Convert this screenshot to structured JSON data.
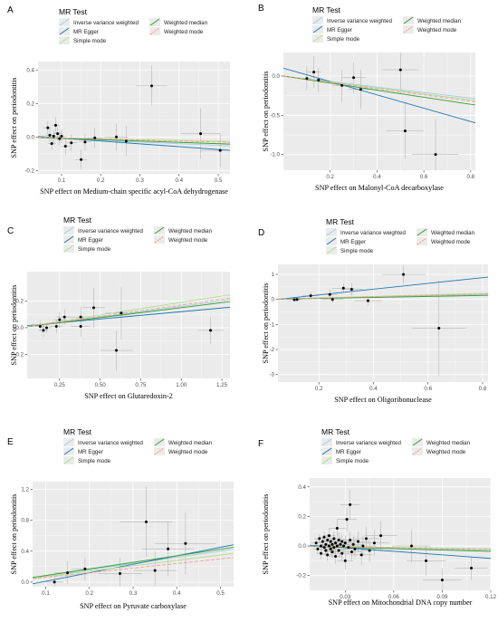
{
  "legend": {
    "title": "MR Test",
    "methods": [
      {
        "key": "ivw",
        "label": "Inverse variance weighted",
        "color": "#a6cee3",
        "dash": "none"
      },
      {
        "key": "egger",
        "label": "MR Egger",
        "color": "#1f78b4",
        "dash": "none"
      },
      {
        "key": "simple",
        "label": "Simple mode",
        "color": "#b2df8a",
        "dash": "none"
      },
      {
        "key": "median",
        "label": "Weighted median",
        "color": "#33a02c",
        "dash": "none"
      },
      {
        "key": "wmode",
        "label": "Weighted mode",
        "color": "#fb9a99",
        "dash": "4,2"
      }
    ]
  },
  "chart_data": [
    {
      "type": "scatter",
      "panel": "A",
      "xlabel": "SNP effect on Medium-chain specific acyl-CoA dehydrogenase",
      "ylabel": "SNP effect on periodontitis",
      "xlim": [
        0.04,
        0.53
      ],
      "ylim": [
        -0.22,
        0.45
      ],
      "xticks": [
        0.1,
        0.2,
        0.3,
        0.4,
        0.5
      ],
      "xtick_labels": [
        "0.1",
        "0.2",
        "0.3",
        "0.4",
        "0.5"
      ],
      "yticks": [
        -0.2,
        0.0,
        0.2,
        0.4
      ],
      "ytick_labels": [
        "-0.2",
        "0.0",
        "0.2",
        "0.4"
      ],
      "grid": true,
      "points": [
        {
          "x": 0.065,
          "y": 0.055,
          "xe": 0.01,
          "ye": 0.04
        },
        {
          "x": 0.07,
          "y": 0.01,
          "xe": 0.01,
          "ye": 0.04
        },
        {
          "x": 0.075,
          "y": -0.04,
          "xe": 0.01,
          "ye": 0.04
        },
        {
          "x": 0.08,
          "y": 0.005,
          "xe": 0.01,
          "ye": 0.04
        },
        {
          "x": 0.085,
          "y": 0.07,
          "xe": 0.01,
          "ye": 0.05
        },
        {
          "x": 0.09,
          "y": 0.02,
          "xe": 0.012,
          "ye": 0.04
        },
        {
          "x": 0.095,
          "y": -0.01,
          "xe": 0.012,
          "ye": 0.04
        },
        {
          "x": 0.1,
          "y": 0.005,
          "xe": 0.012,
          "ye": 0.04
        },
        {
          "x": 0.11,
          "y": -0.055,
          "xe": 0.012,
          "ye": 0.05
        },
        {
          "x": 0.125,
          "y": -0.035,
          "xe": 0.015,
          "ye": 0.05
        },
        {
          "x": 0.15,
          "y": -0.135,
          "xe": 0.015,
          "ye": 0.06
        },
        {
          "x": 0.16,
          "y": -0.03,
          "xe": 0.015,
          "ye": 0.05
        },
        {
          "x": 0.185,
          "y": -0.005,
          "xe": 0.02,
          "ye": 0.06
        },
        {
          "x": 0.24,
          "y": 0.0,
          "xe": 0.03,
          "ye": 0.08
        },
        {
          "x": 0.265,
          "y": -0.025,
          "xe": 0.03,
          "ye": 0.09
        },
        {
          "x": 0.33,
          "y": 0.305,
          "xe": 0.04,
          "ye": 0.12
        },
        {
          "x": 0.455,
          "y": 0.02,
          "xe": 0.05,
          "ye": 0.15
        },
        {
          "x": 0.505,
          "y": -0.08,
          "xe": 0.05,
          "ye": 0.1
        }
      ],
      "lines": [
        {
          "method": "ivw",
          "intercept": 0,
          "slope": -0.1
        },
        {
          "method": "egger",
          "intercept": 0.01,
          "slope": -0.17
        },
        {
          "method": "simple",
          "intercept": 0,
          "slope": -0.05
        },
        {
          "method": "median",
          "intercept": 0,
          "slope": -0.08
        },
        {
          "method": "wmode",
          "intercept": 0,
          "slope": -0.06
        }
      ]
    },
    {
      "type": "scatter",
      "panel": "B",
      "xlabel": "SNP effect on Malonyl-CoA decarboxylase",
      "ylabel": "SNP effect on periodontitis",
      "xlim": [
        0.0,
        0.82
      ],
      "ylim": [
        -1.2,
        0.3
      ],
      "xticks": [
        0.2,
        0.4,
        0.6,
        0.8
      ],
      "xtick_labels": [
        "0.2",
        "0.4",
        "0.6",
        "0.8"
      ],
      "yticks": [
        -1.0,
        -0.5,
        0.0
      ],
      "ytick_labels": [
        "-1.0",
        "-0.5",
        "0.0"
      ],
      "grid": true,
      "points": [
        {
          "x": 0.1,
          "y": -0.03,
          "xe": 0.02,
          "ye": 0.15
        },
        {
          "x": 0.13,
          "y": 0.05,
          "xe": 0.03,
          "ye": 0.2
        },
        {
          "x": 0.15,
          "y": -0.05,
          "xe": 0.03,
          "ye": 0.15
        },
        {
          "x": 0.25,
          "y": -0.12,
          "xe": 0.04,
          "ye": 0.2
        },
        {
          "x": 0.3,
          "y": -0.02,
          "xe": 0.05,
          "ye": 0.2
        },
        {
          "x": 0.33,
          "y": -0.17,
          "xe": 0.05,
          "ye": 0.25
        },
        {
          "x": 0.5,
          "y": 0.08,
          "xe": 0.08,
          "ye": 0.3
        },
        {
          "x": 0.52,
          "y": -0.7,
          "xe": 0.08,
          "ye": 0.35
        },
        {
          "x": 0.65,
          "y": -1.0,
          "xe": 0.1,
          "ye": 0.45
        }
      ],
      "lines": [
        {
          "method": "ivw",
          "intercept": 0,
          "slope": -0.35
        },
        {
          "method": "egger",
          "intercept": 0.1,
          "slope": -0.85
        },
        {
          "method": "simple",
          "intercept": 0,
          "slope": -0.38
        },
        {
          "method": "median",
          "intercept": 0,
          "slope": -0.45
        },
        {
          "method": "wmode",
          "intercept": 0,
          "slope": -0.4
        }
      ]
    },
    {
      "type": "scatter",
      "panel": "C",
      "xlabel": "SNP effect on Glutaredoxin-2",
      "ylabel": "SNP effect on periodontitis",
      "xlim": [
        0.05,
        1.3
      ],
      "ylim": [
        -0.38,
        0.42
      ],
      "xticks": [
        0.25,
        0.5,
        0.75,
        1.0,
        1.25
      ],
      "xtick_labels": [
        "0.25",
        "0.50",
        "0.75",
        "1.00",
        "1.25"
      ],
      "yticks": [
        -0.2,
        0.0,
        0.2
      ],
      "ytick_labels": [
        "-0.2",
        "0.0",
        "0.2"
      ],
      "grid": true,
      "points": [
        {
          "x": 0.13,
          "y": 0.01,
          "xe": 0.03,
          "ye": 0.04
        },
        {
          "x": 0.15,
          "y": -0.02,
          "xe": 0.03,
          "ye": 0.05
        },
        {
          "x": 0.17,
          "y": 0.0,
          "xe": 0.03,
          "ye": 0.04
        },
        {
          "x": 0.23,
          "y": 0.01,
          "xe": 0.04,
          "ye": 0.05
        },
        {
          "x": 0.25,
          "y": 0.06,
          "xe": 0.04,
          "ye": 0.06
        },
        {
          "x": 0.28,
          "y": 0.08,
          "xe": 0.05,
          "ye": 0.06
        },
        {
          "x": 0.38,
          "y": 0.08,
          "xe": 0.06,
          "ye": 0.08
        },
        {
          "x": 0.38,
          "y": 0.01,
          "xe": 0.06,
          "ye": 0.08
        },
        {
          "x": 0.46,
          "y": 0.15,
          "xe": 0.07,
          "ye": 0.15
        },
        {
          "x": 0.63,
          "y": 0.11,
          "xe": 0.1,
          "ye": 0.2
        },
        {
          "x": 0.6,
          "y": -0.17,
          "xe": 0.1,
          "ye": 0.15
        },
        {
          "x": 1.18,
          "y": -0.02,
          "xe": 0.08,
          "ye": 0.1
        }
      ],
      "lines": [
        {
          "method": "ivw",
          "intercept": 0,
          "slope": 0.16
        },
        {
          "method": "egger",
          "intercept": 0.01,
          "slope": 0.11
        },
        {
          "method": "simple",
          "intercept": 0,
          "slope": 0.19
        },
        {
          "method": "median",
          "intercept": 0,
          "slope": 0.15
        },
        {
          "method": "wmode",
          "intercept": 0,
          "slope": 0.17
        }
      ]
    },
    {
      "type": "scatter",
      "panel": "D",
      "xlabel": "SNP effect on Oligoribonuclease",
      "ylabel": "SNP effect on periodontitis",
      "xlim": [
        0.05,
        0.82
      ],
      "ylim": [
        -3.3,
        1.4
      ],
      "xticks": [
        0.2,
        0.4,
        0.6,
        0.8
      ],
      "xtick_labels": [
        "0.2",
        "0.4",
        "0.6",
        "0.8"
      ],
      "yticks": [
        -3,
        -2,
        -1,
        0,
        1
      ],
      "ytick_labels": [
        "-3",
        "-2",
        "-1",
        "0",
        "1"
      ],
      "grid": true,
      "points": [
        {
          "x": 0.11,
          "y": -0.01,
          "xe": 0.02,
          "ye": 0.1
        },
        {
          "x": 0.12,
          "y": 0.0,
          "xe": 0.02,
          "ye": 0.1
        },
        {
          "x": 0.17,
          "y": 0.15,
          "xe": 0.03,
          "ye": 0.15
        },
        {
          "x": 0.24,
          "y": 0.2,
          "xe": 0.03,
          "ye": 0.2
        },
        {
          "x": 0.25,
          "y": 0.0,
          "xe": 0.04,
          "ye": 0.15
        },
        {
          "x": 0.29,
          "y": 0.45,
          "xe": 0.04,
          "ye": 0.2
        },
        {
          "x": 0.32,
          "y": 0.4,
          "xe": 0.04,
          "ye": 0.25
        },
        {
          "x": 0.38,
          "y": -0.05,
          "xe": 0.05,
          "ye": 0.2
        },
        {
          "x": 0.51,
          "y": 1.0,
          "xe": 0.08,
          "ye": 0.35
        },
        {
          "x": 0.64,
          "y": -1.15,
          "xe": 0.1,
          "ye": 1.9
        }
      ],
      "lines": [
        {
          "method": "ivw",
          "intercept": 0,
          "slope": 0.25
        },
        {
          "method": "egger",
          "intercept": -0.05,
          "slope": 1.15
        },
        {
          "method": "simple",
          "intercept": 0,
          "slope": 0.3
        },
        {
          "method": "median",
          "intercept": 0,
          "slope": 0.2
        },
        {
          "method": "wmode",
          "intercept": 0,
          "slope": 0.28
        }
      ]
    },
    {
      "type": "scatter",
      "panel": "E",
      "xlabel": "SNP effect on Pyruvate carboxylase",
      "ylabel": "SNP effect on periodontitis",
      "xlim": [
        0.07,
        0.53
      ],
      "ylim": [
        -0.06,
        1.3
      ],
      "xticks": [
        0.1,
        0.2,
        0.3,
        0.4,
        0.5
      ],
      "xtick_labels": [
        "0.1",
        "0.2",
        "0.3",
        "0.4",
        "0.5"
      ],
      "yticks": [
        0.0,
        0.4,
        0.8,
        1.2
      ],
      "ytick_labels": [
        "0.0",
        "0.4",
        "0.8",
        "1.2"
      ],
      "grid": true,
      "points": [
        {
          "x": 0.12,
          "y": 0.0,
          "xe": 0.02,
          "ye": 0.1
        },
        {
          "x": 0.15,
          "y": 0.12,
          "xe": 0.03,
          "ye": 0.15
        },
        {
          "x": 0.19,
          "y": 0.17,
          "xe": 0.03,
          "ye": 0.15
        },
        {
          "x": 0.27,
          "y": 0.11,
          "xe": 0.05,
          "ye": 0.2
        },
        {
          "x": 0.33,
          "y": 0.78,
          "xe": 0.06,
          "ye": 0.45
        },
        {
          "x": 0.35,
          "y": 0.15,
          "xe": 0.05,
          "ye": 0.25
        },
        {
          "x": 0.38,
          "y": 0.43,
          "xe": 0.06,
          "ye": 0.35
        },
        {
          "x": 0.42,
          "y": 0.5,
          "xe": 0.07,
          "ye": 0.4
        }
      ],
      "lines": [
        {
          "method": "ivw",
          "intercept": 0,
          "slope": 0.8
        },
        {
          "method": "egger",
          "intercept": -0.1,
          "slope": 1.1
        },
        {
          "method": "simple",
          "intercept": 0,
          "slope": 0.7
        },
        {
          "method": "median",
          "intercept": 0,
          "slope": 0.85
        },
        {
          "method": "wmode",
          "intercept": 0,
          "slope": 0.6
        }
      ]
    },
    {
      "type": "scatter",
      "panel": "F",
      "xlabel": "SNP effect on Mitochondrial DNA copy number",
      "ylabel": "SNP effect on periodontitis",
      "xlim": [
        0.008,
        0.12
      ],
      "ylim": [
        -0.3,
        0.46
      ],
      "xticks": [
        0.03,
        0.06,
        0.09,
        0.12
      ],
      "xtick_labels": [
        "0.03",
        "0.06",
        "0.09",
        "0.12"
      ],
      "yticks": [
        -0.2,
        0.0,
        0.2,
        0.4
      ],
      "ytick_labels": [
        "-0.2",
        "0.0",
        "0.2",
        "0.4"
      ],
      "grid": true,
      "points": [
        {
          "x": 0.012,
          "y": 0.02,
          "xe": 0.003,
          "ye": 0.03
        },
        {
          "x": 0.013,
          "y": -0.02,
          "xe": 0.003,
          "ye": 0.03
        },
        {
          "x": 0.014,
          "y": 0.05,
          "xe": 0.003,
          "ye": 0.03
        },
        {
          "x": 0.015,
          "y": 0.0,
          "xe": 0.003,
          "ye": 0.03
        },
        {
          "x": 0.015,
          "y": -0.05,
          "xe": 0.003,
          "ye": 0.04
        },
        {
          "x": 0.016,
          "y": 0.03,
          "xe": 0.003,
          "ye": 0.03
        },
        {
          "x": 0.017,
          "y": -0.01,
          "xe": 0.003,
          "ye": 0.03
        },
        {
          "x": 0.017,
          "y": 0.06,
          "xe": 0.003,
          "ye": 0.04
        },
        {
          "x": 0.018,
          "y": -0.03,
          "xe": 0.003,
          "ye": 0.03
        },
        {
          "x": 0.018,
          "y": 0.01,
          "xe": 0.003,
          "ye": 0.03
        },
        {
          "x": 0.019,
          "y": 0.04,
          "xe": 0.003,
          "ye": 0.04
        },
        {
          "x": 0.019,
          "y": -0.06,
          "xe": 0.003,
          "ye": 0.04
        },
        {
          "x": 0.02,
          "y": 0.0,
          "xe": 0.003,
          "ye": 0.03
        },
        {
          "x": 0.02,
          "y": 0.07,
          "xe": 0.004,
          "ye": 0.05
        },
        {
          "x": 0.021,
          "y": -0.02,
          "xe": 0.004,
          "ye": 0.04
        },
        {
          "x": 0.021,
          "y": 0.03,
          "xe": 0.004,
          "ye": 0.04
        },
        {
          "x": 0.022,
          "y": -0.04,
          "xe": 0.004,
          "ye": 0.04
        },
        {
          "x": 0.022,
          "y": 0.01,
          "xe": 0.004,
          "ye": 0.04
        },
        {
          "x": 0.023,
          "y": 0.05,
          "xe": 0.004,
          "ye": 0.05
        },
        {
          "x": 0.023,
          "y": -0.01,
          "xe": 0.004,
          "ye": 0.04
        },
        {
          "x": 0.024,
          "y": 0.02,
          "xe": 0.004,
          "ye": 0.04
        },
        {
          "x": 0.024,
          "y": -0.07,
          "xe": 0.004,
          "ye": 0.05
        },
        {
          "x": 0.025,
          "y": 0.0,
          "xe": 0.004,
          "ye": 0.04
        },
        {
          "x": 0.025,
          "y": 0.12,
          "xe": 0.005,
          "ye": 0.06
        },
        {
          "x": 0.026,
          "y": -0.03,
          "xe": 0.005,
          "ye": 0.05
        },
        {
          "x": 0.026,
          "y": 0.04,
          "xe": 0.005,
          "ye": 0.05
        },
        {
          "x": 0.027,
          "y": 0.01,
          "xe": 0.005,
          "ye": 0.05
        },
        {
          "x": 0.028,
          "y": -0.05,
          "xe": 0.005,
          "ye": 0.05
        },
        {
          "x": 0.028,
          "y": 0.03,
          "xe": 0.005,
          "ye": 0.05
        },
        {
          "x": 0.029,
          "y": 0.0,
          "xe": 0.005,
          "ye": 0.05
        },
        {
          "x": 0.03,
          "y": -0.1,
          "xe": 0.005,
          "ye": 0.06
        },
        {
          "x": 0.03,
          "y": 0.02,
          "xe": 0.005,
          "ye": 0.05
        },
        {
          "x": 0.031,
          "y": 0.18,
          "xe": 0.006,
          "ye": 0.08
        },
        {
          "x": 0.032,
          "y": -0.01,
          "xe": 0.006,
          "ye": 0.05
        },
        {
          "x": 0.033,
          "y": 0.04,
          "xe": 0.006,
          "ye": 0.06
        },
        {
          "x": 0.033,
          "y": 0.28,
          "xe": 0.006,
          "ye": 0.1
        },
        {
          "x": 0.034,
          "y": -0.04,
          "xe": 0.006,
          "ye": 0.06
        },
        {
          "x": 0.035,
          "y": 0.01,
          "xe": 0.006,
          "ye": 0.06
        },
        {
          "x": 0.036,
          "y": -0.02,
          "xe": 0.007,
          "ye": 0.06
        },
        {
          "x": 0.038,
          "y": 0.03,
          "xe": 0.007,
          "ye": 0.07
        },
        {
          "x": 0.04,
          "y": -0.06,
          "xe": 0.007,
          "ye": 0.07
        },
        {
          "x": 0.041,
          "y": 0.0,
          "xe": 0.008,
          "ye": 0.07
        },
        {
          "x": 0.043,
          "y": 0.05,
          "xe": 0.008,
          "ye": 0.08
        },
        {
          "x": 0.045,
          "y": -0.03,
          "xe": 0.008,
          "ye": 0.08
        },
        {
          "x": 0.048,
          "y": 0.02,
          "xe": 0.009,
          "ye": 0.09
        },
        {
          "x": 0.052,
          "y": 0.07,
          "xe": 0.01,
          "ye": 0.1
        },
        {
          "x": 0.071,
          "y": 0.0,
          "xe": 0.012,
          "ye": 0.11
        },
        {
          "x": 0.08,
          "y": -0.1,
          "xe": 0.012,
          "ye": 0.1
        },
        {
          "x": 0.09,
          "y": -0.23,
          "xe": 0.012,
          "ye": 0.08
        },
        {
          "x": 0.108,
          "y": -0.15,
          "xe": 0.01,
          "ye": 0.08
        }
      ],
      "lines": [
        {
          "method": "ivw",
          "intercept": 0,
          "slope": -0.25
        },
        {
          "method": "egger",
          "intercept": 0.012,
          "slope": -0.8
        },
        {
          "method": "simple",
          "intercept": 0,
          "slope": -0.15
        },
        {
          "method": "median",
          "intercept": 0,
          "slope": -0.3
        },
        {
          "method": "wmode",
          "intercept": 0,
          "slope": -0.2
        }
      ]
    }
  ]
}
